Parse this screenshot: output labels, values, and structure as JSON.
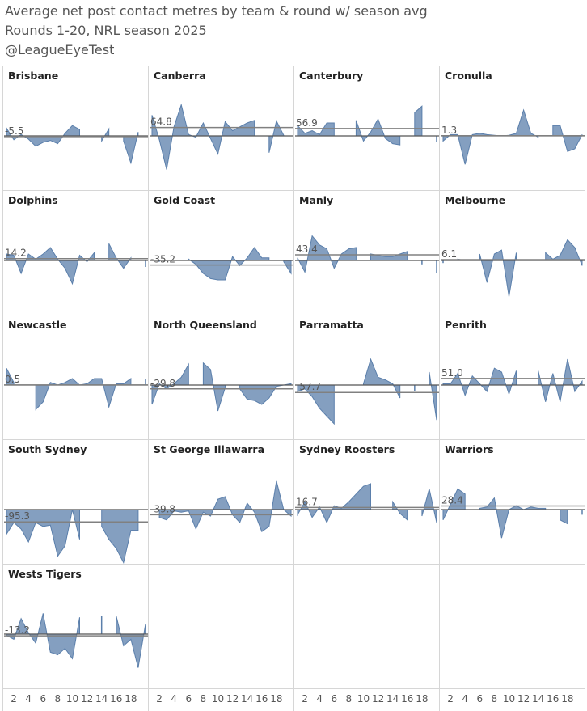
{
  "header": {
    "title": "Average net post contact metres by team & round w/ season avg",
    "subtitle": "Rounds 1-20, NRL season 2025",
    "handle": "@LeagueEyeTest"
  },
  "colors": {
    "fill": "#5b7fab",
    "line": "#808080",
    "grid": "#d6d6d6",
    "zero": "#555555"
  },
  "chart_data": {
    "type": "area",
    "xlabel": "",
    "ylabel": "",
    "x": [
      1,
      2,
      3,
      4,
      5,
      6,
      7,
      8,
      9,
      10,
      11,
      12,
      13,
      14,
      15,
      16,
      17,
      18,
      19,
      20
    ],
    "x_ticks": [
      2,
      4,
      6,
      8,
      10,
      12,
      14,
      16,
      18
    ],
    "ylim": [
      -400,
      400
    ],
    "series": [
      {
        "name": "Brisbane",
        "avg": -5.5,
        "values": [
          60,
          -30,
          10,
          -25,
          -80,
          -50,
          -35,
          -60,
          20,
          80,
          50,
          null,
          null,
          -40,
          55,
          null,
          -40,
          -210,
          30,
          null
        ]
      },
      {
        "name": "Canberra",
        "avg": 64.8,
        "values": [
          160,
          -30,
          -260,
          70,
          240,
          10,
          -10,
          100,
          -20,
          -140,
          110,
          40,
          70,
          100,
          120,
          null,
          -130,
          115,
          5,
          null
        ]
      },
      {
        "name": "Canterbury",
        "avg": 56.9,
        "values": [
          80,
          20,
          40,
          10,
          100,
          100,
          null,
          null,
          120,
          -40,
          30,
          130,
          -20,
          -60,
          -70,
          null,
          180,
          230,
          null,
          -50
        ]
      },
      {
        "name": "Cronulla",
        "avg": 1.3,
        "values": [
          -40,
          10,
          10,
          -220,
          10,
          20,
          10,
          5,
          0,
          5,
          20,
          200,
          20,
          -10,
          null,
          80,
          80,
          -120,
          -100,
          10
        ]
      },
      {
        "name": "Dolphins",
        "avg": 14.2,
        "values": [
          50,
          40,
          -100,
          50,
          10,
          50,
          100,
          10,
          -60,
          -180,
          40,
          -10,
          60,
          null,
          130,
          20,
          -60,
          20,
          null,
          -50
        ]
      },
      {
        "name": "Gold Coast",
        "avg": -35.2,
        "values": [
          null,
          -10,
          null,
          null,
          null,
          10,
          -30,
          -100,
          -140,
          -150,
          -150,
          30,
          -40,
          20,
          100,
          20,
          20,
          null,
          -10,
          -100
        ]
      },
      {
        "name": "Manly",
        "avg": 43.4,
        "values": [
          20,
          -90,
          190,
          120,
          90,
          -60,
          50,
          90,
          100,
          null,
          50,
          40,
          30,
          30,
          50,
          70,
          null,
          -30,
          null,
          -100
        ]
      },
      {
        "name": "Melbourne",
        "avg": 6.1,
        "values": [
          -20,
          null,
          10,
          0,
          null,
          50,
          -170,
          50,
          80,
          -280,
          60,
          null,
          null,
          null,
          60,
          10,
          40,
          160,
          100,
          -40
        ]
      },
      {
        "name": "Newcastle",
        "avg": 0.5,
        "values": [
          130,
          20,
          null,
          null,
          -190,
          -130,
          20,
          0,
          20,
          50,
          0,
          10,
          50,
          50,
          -170,
          10,
          10,
          50,
          null,
          50
        ]
      },
      {
        "name": "North Queensland",
        "avg": -29.8,
        "values": [
          -150,
          10,
          -30,
          10,
          60,
          160,
          null,
          170,
          120,
          -200,
          -20,
          null,
          -30,
          -110,
          -120,
          -150,
          -100,
          -10,
          0,
          10
        ]
      },
      {
        "name": "Parramatta",
        "avg": -57.7,
        "values": [
          -50,
          -30,
          -90,
          -180,
          -240,
          -300,
          null,
          null,
          null,
          10,
          200,
          60,
          40,
          10,
          -100,
          null,
          -50,
          null,
          100,
          -270
        ]
      },
      {
        "name": "Penrith",
        "avg": 51.0,
        "values": [
          10,
          10,
          90,
          -80,
          70,
          10,
          -50,
          130,
          100,
          -70,
          110,
          null,
          null,
          110,
          -130,
          90,
          -130,
          200,
          -50,
          30
        ]
      },
      {
        "name": "South Sydney",
        "avg": -95.3,
        "values": [
          -190,
          -100,
          -150,
          -250,
          -100,
          -130,
          -120,
          -360,
          -280,
          0,
          -230,
          null,
          null,
          -130,
          -230,
          -300,
          -410,
          -160,
          -160,
          null
        ]
      },
      {
        "name": "St George Illawarra",
        "avg": -39.8,
        "values": [
          null,
          -60,
          -80,
          -10,
          -20,
          -10,
          -150,
          -20,
          -50,
          80,
          100,
          -40,
          -100,
          50,
          -20,
          -170,
          -130,
          220,
          0,
          -50
        ]
      },
      {
        "name": "Sydney Roosters",
        "avg": 16.7,
        "values": [
          -40,
          60,
          -60,
          20,
          -100,
          30,
          10,
          60,
          120,
          180,
          200,
          null,
          null,
          60,
          -30,
          -80,
          null,
          -50,
          160,
          -100
        ]
      },
      {
        "name": "Warriors",
        "avg": 28.4,
        "values": [
          -80,
          40,
          160,
          120,
          null,
          10,
          20,
          90,
          -220,
          0,
          30,
          0,
          20,
          10,
          10,
          null,
          -80,
          -110,
          null,
          -40
        ]
      },
      {
        "name": "Wests Tigers",
        "avg": -13.2,
        "values": [
          -10,
          -40,
          120,
          10,
          -70,
          160,
          -140,
          -160,
          -110,
          -190,
          130,
          null,
          null,
          140,
          null,
          140,
          -90,
          -40,
          -260,
          80
        ]
      }
    ]
  }
}
